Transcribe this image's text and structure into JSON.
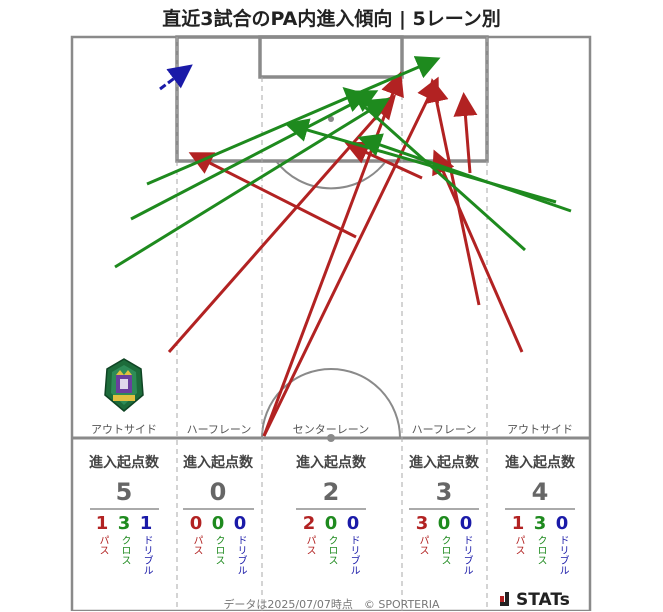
{
  "title": "直近3試合のPA内進入傾向 | 5レーン別",
  "lanes": [
    {
      "name": "アウトサイド",
      "head": "進入起点数",
      "count": "5",
      "pass": "1",
      "cross": "3",
      "dribble": "1"
    },
    {
      "name": "ハーフレーン",
      "head": "進入起点数",
      "count": "0",
      "pass": "0",
      "cross": "0",
      "dribble": "0"
    },
    {
      "name": "センターレーン",
      "head": "進入起点数",
      "count": "2",
      "pass": "2",
      "cross": "0",
      "dribble": "0"
    },
    {
      "name": "ハーフレーン",
      "head": "進入起点数",
      "count": "3",
      "pass": "3",
      "cross": "0",
      "dribble": "0"
    },
    {
      "name": "アウトサイド",
      "head": "進入起点数",
      "count": "4",
      "pass": "1",
      "cross": "3",
      "dribble": "0"
    }
  ],
  "legend": {
    "pass": "パス",
    "cross": "クロス",
    "dribble": "ドリブル"
  },
  "colors": {
    "pass": "#b22222",
    "cross": "#1e8a1e",
    "dribble": "#1a1aa8"
  },
  "footer": "データは2025/07/07時点　© SPORTERIA",
  "brand": "STATs",
  "crest_icon": "team-crest-icon",
  "arrows": [
    {
      "type": "dribble"
    },
    {
      "type": "pass"
    },
    {
      "type": "pass"
    },
    {
      "type": "pass"
    },
    {
      "type": "pass"
    },
    {
      "type": "pass"
    },
    {
      "type": "pass"
    },
    {
      "type": "pass"
    },
    {
      "type": "cross"
    },
    {
      "type": "cross"
    },
    {
      "type": "cross"
    },
    {
      "type": "cross"
    },
    {
      "type": "cross"
    },
    {
      "type": "cross"
    }
  ]
}
